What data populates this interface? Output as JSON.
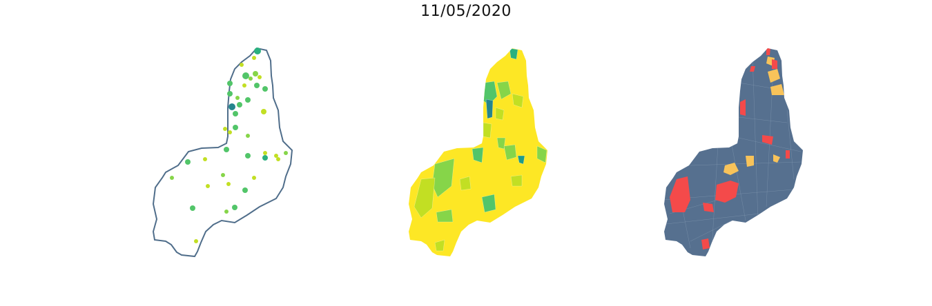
{
  "title": "11/05/2020",
  "colors": {
    "outline": "#4f6d8a",
    "viridis": [
      "#fde725",
      "#c2df23",
      "#86d549",
      "#52c569",
      "#2ab07f",
      "#1e9b8a",
      "#25858e"
    ],
    "classes": {
      "base": "#56708f",
      "high": "#f44a4a",
      "medium": "#f8c35a"
    }
  },
  "panels": [
    {
      "name": "points-map",
      "type": "proportional-symbols"
    },
    {
      "name": "choropleth-map",
      "type": "choropleth"
    },
    {
      "name": "classified-map",
      "type": "categorical"
    }
  ]
}
